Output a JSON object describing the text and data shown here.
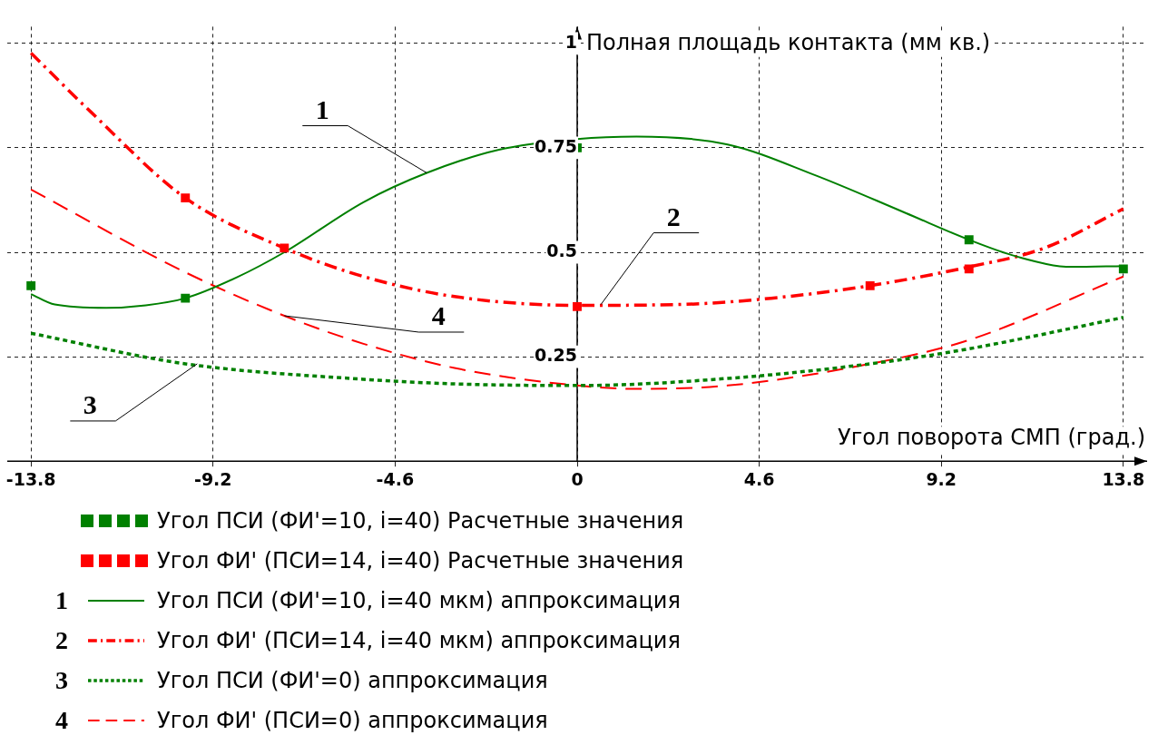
{
  "chart_data": {
    "type": "line",
    "xlabel": "Угол поворота СМП (град.)",
    "ylabel": "Полная площадь контакта (мм кв.)",
    "xlim": [
      -14.4,
      14.4
    ],
    "xticks": [
      -13.8,
      -9.2,
      -4.6,
      0,
      4.6,
      9.2,
      13.8
    ],
    "ylim": [
      0,
      1.04
    ],
    "yticks": [
      {
        "value": 0,
        "label": null
      },
      0.25,
      0.5,
      0.75,
      1
    ],
    "grid": true,
    "legend": "bottom",
    "series": [
      {
        "type": "scatter",
        "marker": "square",
        "name": "Угол ПСИ (ФИ'=10, i=40) Расчетные значения",
        "color": "#008000",
        "x": [
          -13.8,
          -9.9,
          0,
          9.9,
          13.8
        ],
        "values": [
          0.42,
          0.39,
          0.75,
          0.53,
          0.46
        ]
      },
      {
        "type": "scatter",
        "marker": "square",
        "name": "Угол ФИ' (ПСИ=14, i=40) Расчетные значения",
        "color": "#ff0000",
        "x": [
          -9.9,
          -7.4,
          0,
          7.4,
          9.9
        ],
        "values": [
          0.63,
          0.51,
          0.37,
          0.42,
          0.46
        ]
      },
      {
        "type": "line",
        "marker": "none",
        "line_style": "solid",
        "name": "Угол ПСИ (ФИ'=10, i=40 мкм) аппроксимация",
        "color": "#008000",
        "x": [
          -13.8,
          -13.2,
          -11.9,
          -10.9,
          -9.9,
          -8.6,
          -7.4,
          -5.4,
          -3.8,
          -2,
          0,
          1.5,
          3.8,
          6,
          8.3,
          9.9,
          11.1,
          12.5,
          13.8
        ],
        "values": [
          0.4,
          0.375,
          0.367,
          0.373,
          0.39,
          0.44,
          0.5,
          0.62,
          0.69,
          0.745,
          0.771,
          0.777,
          0.758,
          0.685,
          0.594,
          0.53,
          0.49,
          0.465,
          0.467
        ]
      },
      {
        "type": "line",
        "marker": "none",
        "line_style": "dashdot",
        "name": "Угол ФИ' (ПСИ=14, i=40 мкм) аппроксимация",
        "color": "#ff0000",
        "x": [
          -13.8,
          -12.3,
          -9.9,
          -7.4,
          -5.4,
          -3.1,
          0,
          2.6,
          4.9,
          7.4,
          9.9,
          11.8,
          13.8
        ],
        "values": [
          0.977,
          0.837,
          0.63,
          0.51,
          0.442,
          0.394,
          0.373,
          0.375,
          0.39,
          0.42,
          0.465,
          0.51,
          0.604
        ]
      },
      {
        "type": "line",
        "marker": "none",
        "line_style": "dotted",
        "name": "Угол ПСИ (ФИ'=0) аппроксимация",
        "color": "#008000",
        "x": [
          -13.8,
          -9.9,
          -5.4,
          -3.1,
          0,
          3.8,
          7.4,
          9.9,
          13.8
        ],
        "values": [
          0.306,
          0.233,
          0.196,
          0.185,
          0.181,
          0.198,
          0.233,
          0.269,
          0.344
        ]
      },
      {
        "type": "line",
        "marker": "none",
        "line_style": "dashed",
        "name": "Угол ФИ' (ПСИ=0) аппроксимация",
        "color": "#ff0000",
        "x": [
          -13.8,
          -9.9,
          -7.4,
          -5.4,
          -3.1,
          0,
          1.5,
          3.8,
          7.4,
          9.9,
          13.8
        ],
        "values": [
          0.65,
          0.452,
          0.348,
          0.281,
          0.223,
          0.181,
          0.173,
          0.181,
          0.233,
          0.29,
          0.442
        ]
      }
    ],
    "annotations": [
      {
        "text": "1",
        "x": -3.8,
        "y": 0.69
      },
      {
        "text": "2",
        "x": 0.6,
        "y": 0.375
      },
      {
        "text": "3",
        "x": -9.6,
        "y": 0.233
      },
      {
        "text": "4",
        "x": -7.4,
        "y": 0.348
      }
    ]
  }
}
